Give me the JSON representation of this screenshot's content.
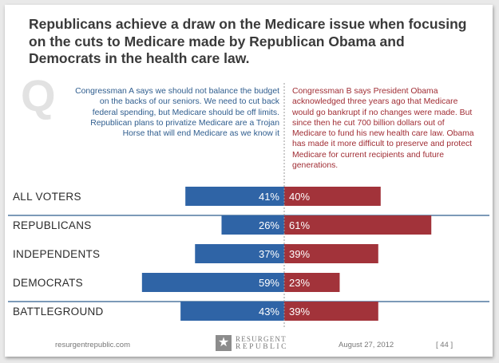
{
  "headline": "Republicans achieve a draw on the Medicare issue when focusing on the cuts to Medicare made by Republican Obama and Democrats in the health care law.",
  "question_mark": "Q",
  "statement_a": "Congressman A says we should not balance the budget on the backs of our seniors. We need to cut back federal spending, but Medicare should be off limits. Republican plans to privatize Medicare are a Trojan Horse that will end Medicare as we know it",
  "statement_b": "Congressman B says President Obama acknowledged three years ago that Medicare would go bankrupt if no changes were made. But since then he cut 700 billion dollars out of Medicare to fund his new health care law. Obama has made it more difficult to preserve and protect Medicare for current recipients and future generations.",
  "footer": {
    "url": "resurgentrepublic.com",
    "date": "August 27, 2012",
    "page": "[ 44 ]"
  },
  "logo": {
    "line1": "RESURGENT",
    "line2": "REPUBLIC",
    "icon": "star-icon"
  },
  "colors": {
    "statement_a": "#2f5d8e",
    "statement_b": "#a02d34",
    "bar_a": "#2f64a6",
    "bar_b": "#a2333a",
    "divider": "#2f5d8e"
  },
  "chart_data": {
    "type": "bar",
    "orientation": "horizontal-diverging",
    "categories": [
      "ALL VOTERS",
      "REPUBLICANS",
      "INDEPENDENTS",
      "DEMOCRATS",
      "BATTLEGROUND"
    ],
    "series": [
      {
        "values": [
          41,
          26,
          37,
          59,
          43
        ],
        "labels": [
          "41%",
          "26%",
          "37%",
          "59%",
          "43%"
        ]
      },
      {
        "values": [
          40,
          61,
          39,
          23,
          39
        ],
        "labels": [
          "40%",
          "61%",
          "39%",
          "23%",
          "39%"
        ]
      }
    ],
    "xlim": [
      0,
      100
    ]
  }
}
